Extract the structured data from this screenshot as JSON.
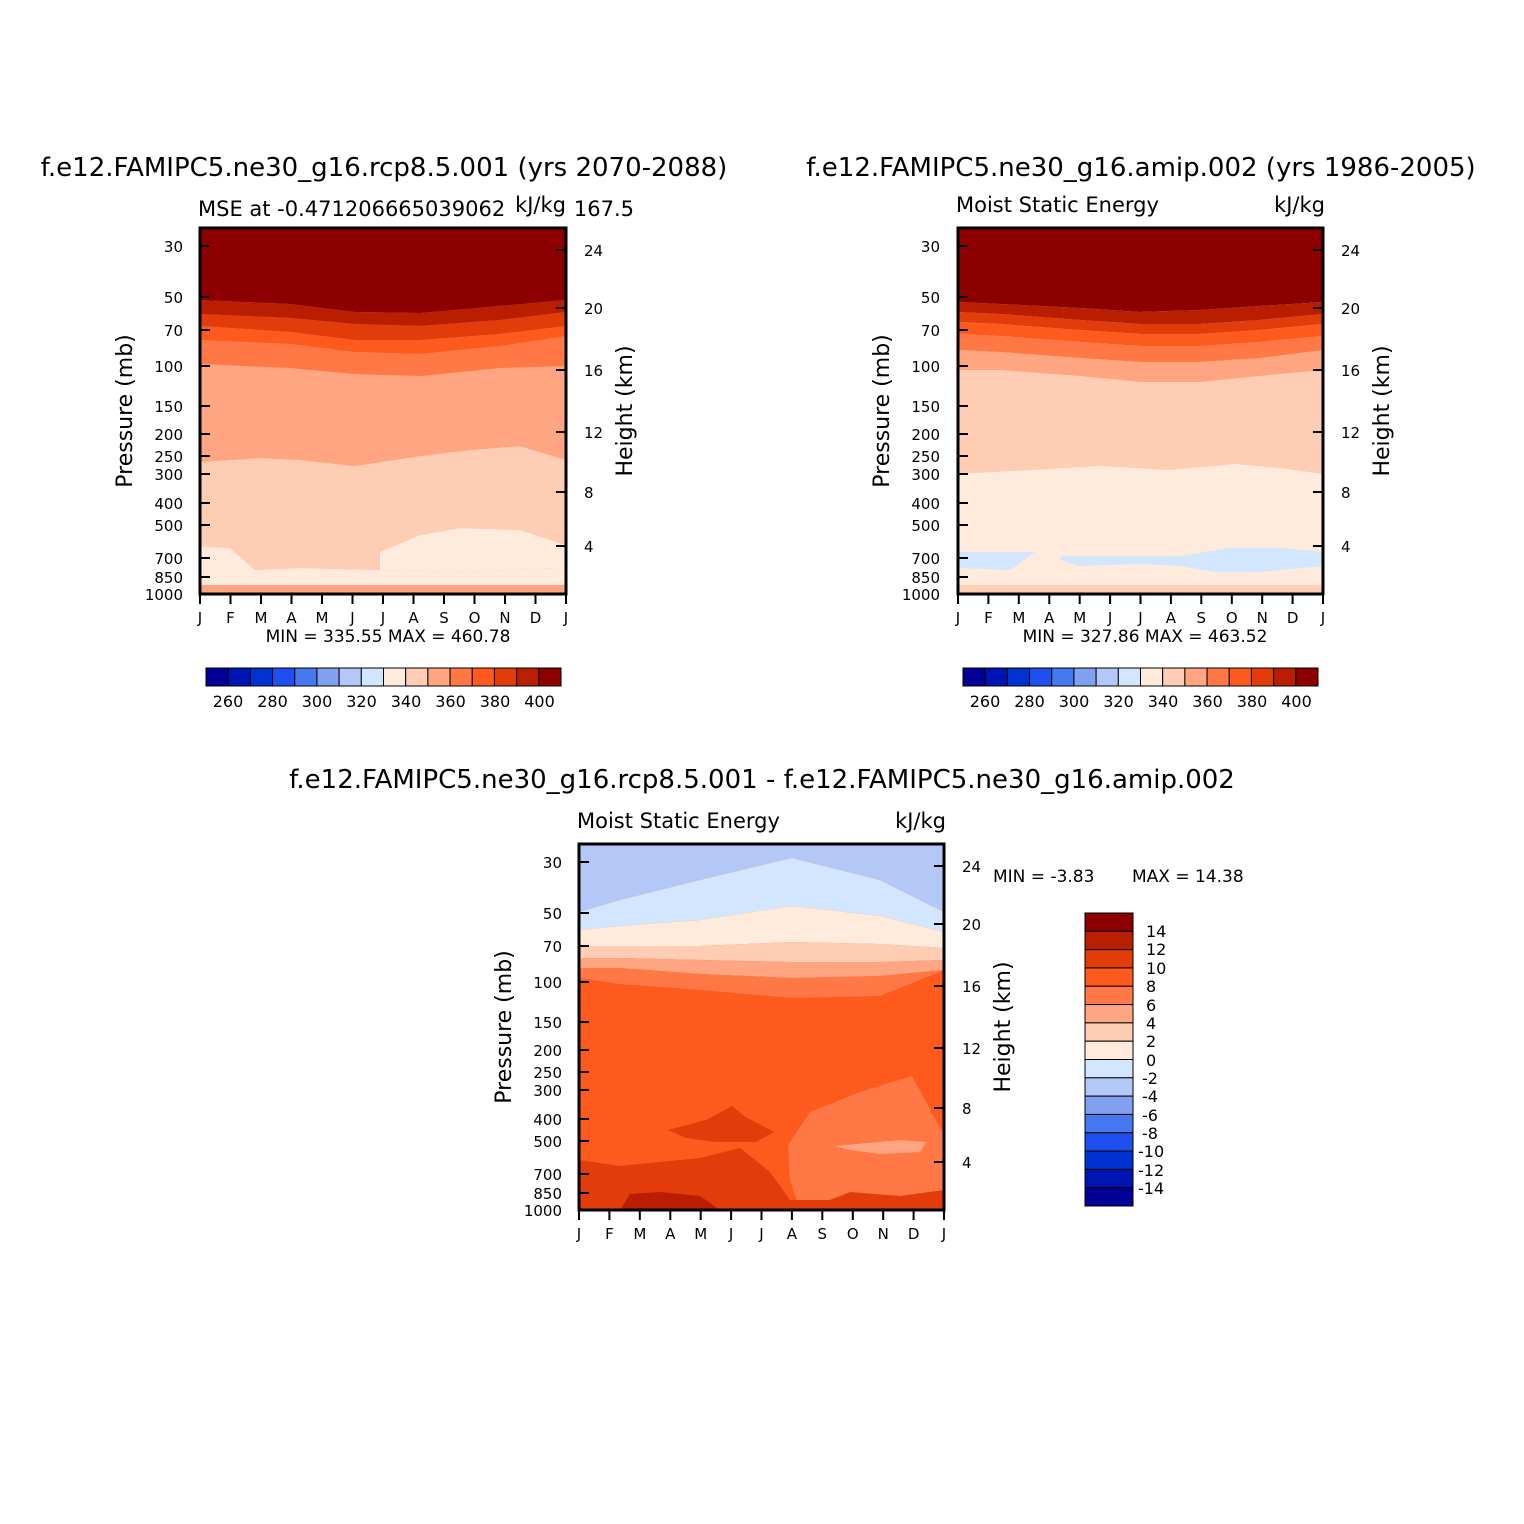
{
  "chart_data": [
    {
      "type": "heatmap",
      "title": "f.e12.FAMIPC5.ne30_g16.rcp8.5.001 (yrs 2070-2088)",
      "subtitle_left": "MSE at -0.471206665039062",
      "subtitle_right": "kJ/kg",
      "subtitle_overlap": "167.5",
      "ylabel": "Pressure (mb)",
      "ylabel_right": "Height (km)",
      "x_ticks": [
        "J",
        "F",
        "M",
        "A",
        "M",
        "J",
        "J",
        "A",
        "S",
        "O",
        "N",
        "D",
        "J"
      ],
      "y_ticks": [
        "30",
        "50",
        "70",
        "100",
        "150",
        "200",
        "250",
        "300",
        "400",
        "500",
        "700",
        "850",
        "1000"
      ],
      "y_right_ticks": [
        "24",
        "20",
        "16",
        "12",
        "8",
        "4"
      ],
      "stats": "MIN = 335.55 MAX = 460.78",
      "colorbar_labels": [
        "260",
        "280",
        "300",
        "320",
        "340",
        "360",
        "380",
        "400"
      ],
      "ylim": [
        1000,
        25
      ]
    },
    {
      "type": "heatmap",
      "title": "f.e12.FAMIPC5.ne30_g16.amip.002 (yrs 1986-2005)",
      "subtitle_left": "Moist Static Energy",
      "subtitle_right": "kJ/kg",
      "ylabel": "Pressure (mb)",
      "ylabel_right": "Height (km)",
      "x_ticks": [
        "J",
        "F",
        "M",
        "A",
        "M",
        "J",
        "J",
        "A",
        "S",
        "O",
        "N",
        "D",
        "J"
      ],
      "y_ticks": [
        "30",
        "50",
        "70",
        "100",
        "150",
        "200",
        "250",
        "300",
        "400",
        "500",
        "700",
        "850",
        "1000"
      ],
      "y_right_ticks": [
        "24",
        "20",
        "16",
        "12",
        "8",
        "4"
      ],
      "stats": "MIN = 327.86 MAX = 463.52",
      "colorbar_labels": [
        "260",
        "280",
        "300",
        "320",
        "340",
        "360",
        "380",
        "400"
      ],
      "ylim": [
        1000,
        25
      ]
    },
    {
      "type": "heatmap",
      "title": "f.e12.FAMIPC5.ne30_g16.rcp8.5.001 - f.e12.FAMIPC5.ne30_g16.amip.002",
      "subtitle_left": "Moist Static Energy",
      "subtitle_right": "kJ/kg",
      "ylabel": "Pressure (mb)",
      "ylabel_right": "Height (km)",
      "x_ticks": [
        "J",
        "F",
        "M",
        "A",
        "M",
        "J",
        "J",
        "A",
        "S",
        "O",
        "N",
        "D",
        "J"
      ],
      "y_ticks": [
        "30",
        "50",
        "70",
        "100",
        "150",
        "200",
        "250",
        "300",
        "400",
        "500",
        "700",
        "850",
        "1000"
      ],
      "y_right_ticks": [
        "24",
        "20",
        "16",
        "12",
        "8",
        "4"
      ],
      "stats_min": "MIN = -3.83",
      "stats_max": "MAX = 14.38",
      "colorbar_labels": [
        "14",
        "12",
        "10",
        "8",
        "6",
        "4",
        "2",
        "0",
        "-2",
        "-4",
        "-6",
        "-8",
        "-10",
        "-12",
        "-14"
      ],
      "ylim": [
        1000,
        25
      ]
    }
  ],
  "colors": {
    "abs_palette": [
      "#000096",
      "#0014b4",
      "#0032d2",
      "#1e50f0",
      "#4678f0",
      "#82a0f0",
      "#b4c8f8",
      "#d2e6ff",
      "#ffebdc",
      "#ffcdb4",
      "#ffa582",
      "#ff7846",
      "#ff5a1e",
      "#e13c0a",
      "#b91e00",
      "#8c0000"
    ],
    "diff_palette": [
      "#8c0000",
      "#b91e00",
      "#e13c0a",
      "#ff5a1e",
      "#ff7846",
      "#ffa582",
      "#ffcdb4",
      "#ffebdc",
      "#d2e6ff",
      "#b4c8f8",
      "#82a0f0",
      "#4678f0",
      "#1e50f0",
      "#0032d2",
      "#0014b4",
      "#000096"
    ]
  }
}
